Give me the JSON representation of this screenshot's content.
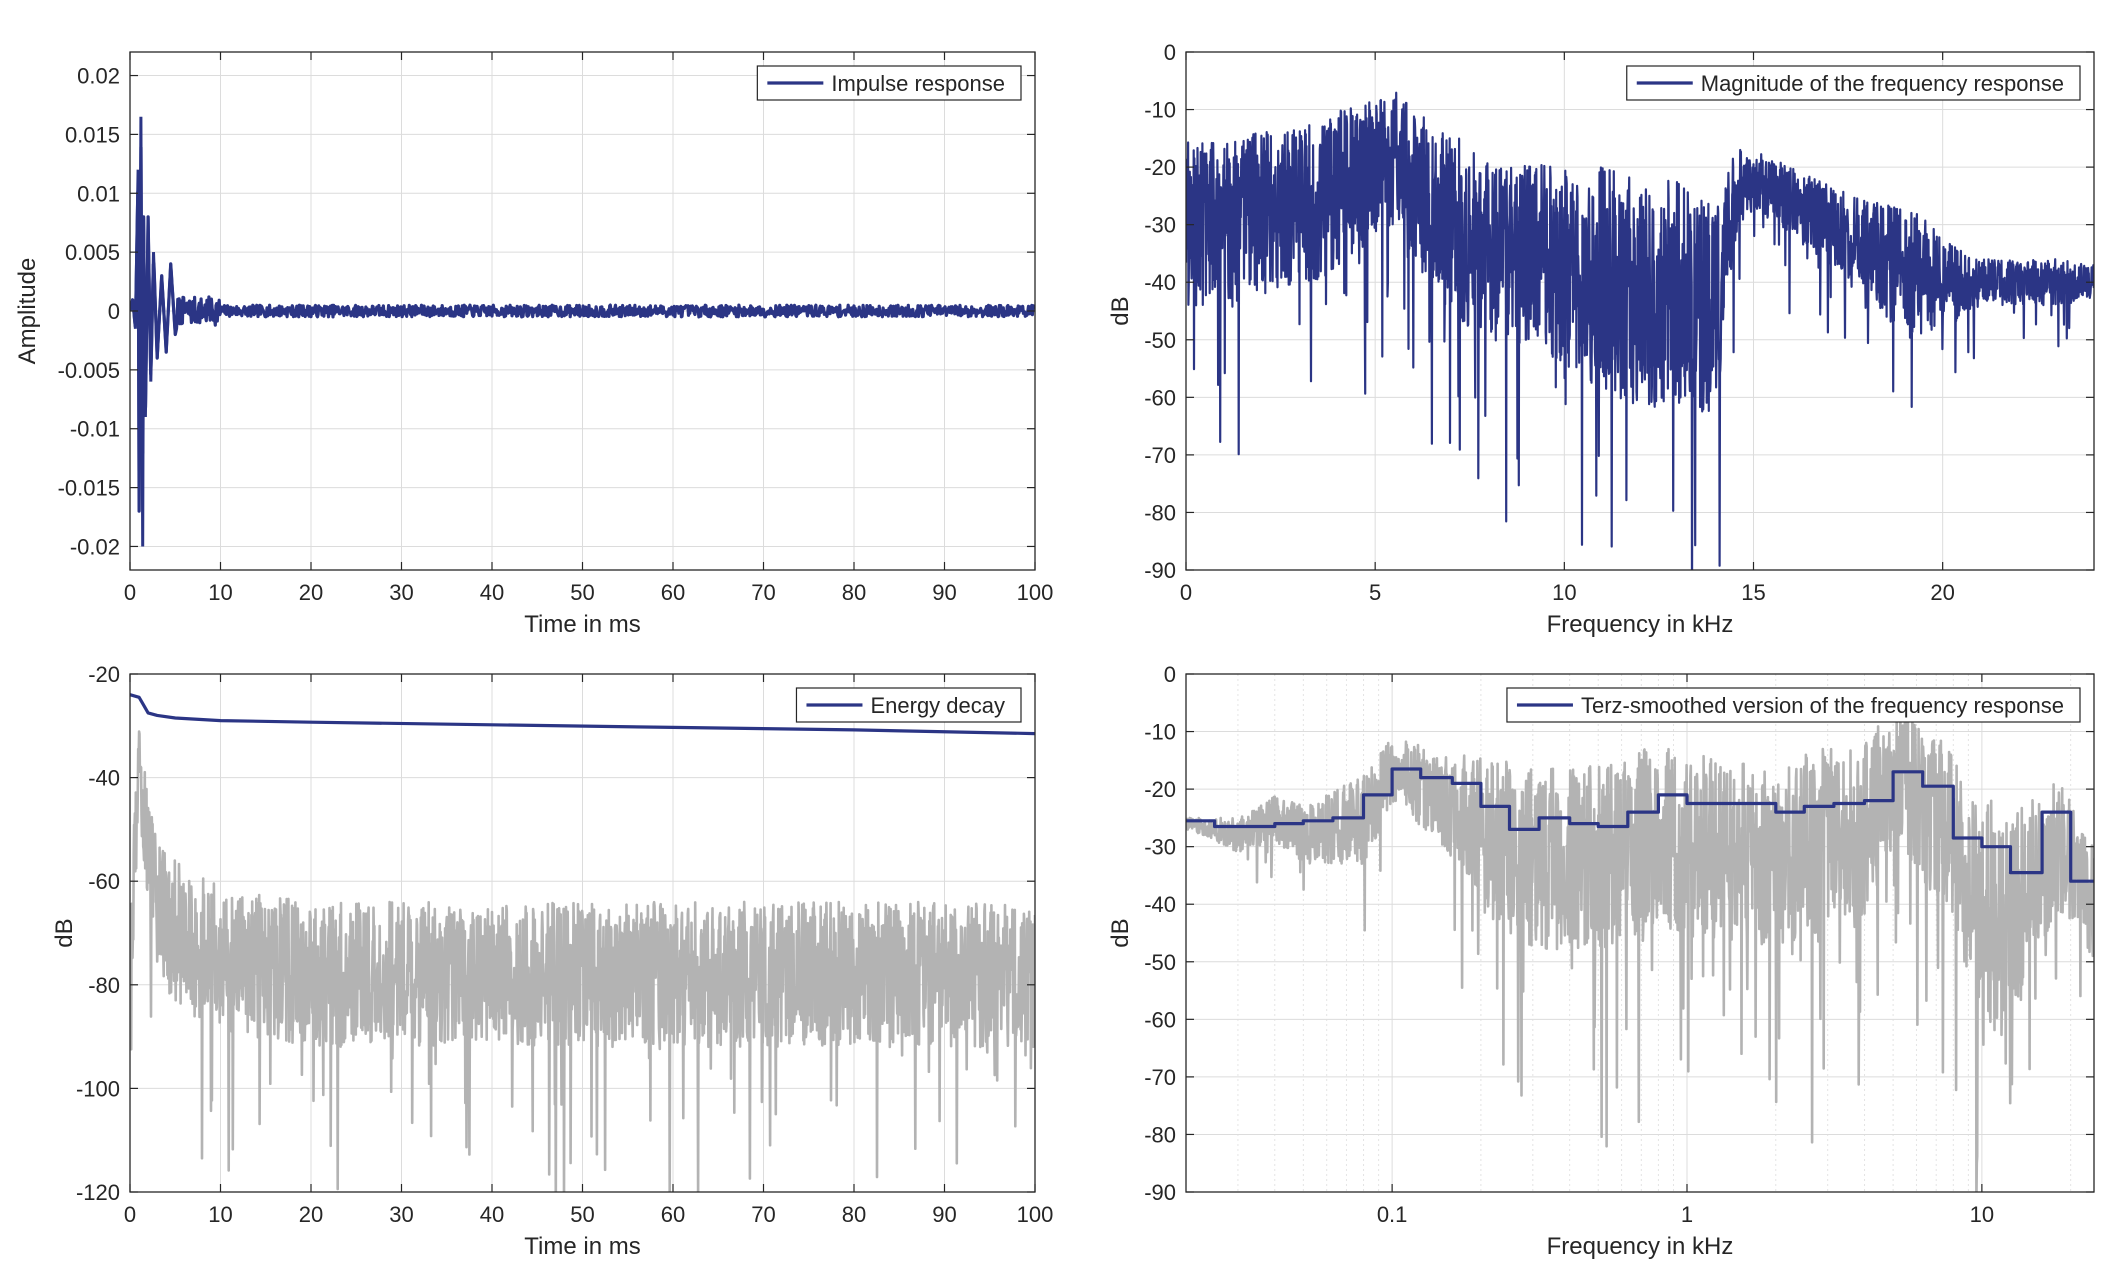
{
  "colors": {
    "primary": "#2b3585",
    "secondary": "#b3b3b3",
    "axis": "#262626",
    "grid": "#dcdcdc"
  },
  "chart_data": [
    {
      "id": "impulse",
      "type": "line",
      "xlabel": "Time in ms",
      "ylabel": "Amplitude",
      "xlim": [
        0,
        100
      ],
      "ylim": [
        -0.022,
        0.022
      ],
      "xticks": [
        0,
        10,
        20,
        30,
        40,
        50,
        60,
        70,
        80,
        90,
        100
      ],
      "xtick_labels": [
        "0",
        "10",
        "20",
        "30",
        "40",
        "50",
        "60",
        "70",
        "80",
        "90",
        "100"
      ],
      "yticks": [
        0.02,
        0.015,
        0.01,
        0.005,
        0,
        -0.005,
        -0.01,
        -0.015,
        -0.02
      ],
      "ytick_labels": [
        "0.02",
        "0.015",
        "0.01",
        "0.005",
        "0",
        "-0.005",
        "-0.01",
        "-0.015",
        "-0.02"
      ],
      "grid": true,
      "legend_position": "top-right",
      "series": [
        {
          "name": "Impulse response",
          "x": [
            0,
            0.3,
            0.6,
            0.9,
            1.0,
            1.2,
            1.4,
            1.5,
            1.7,
            2.0,
            2.3,
            2.6,
            3.0,
            3.5,
            4.0,
            4.5,
            5.0,
            6,
            7,
            8,
            10,
            12,
            15,
            20,
            30,
            40,
            50,
            60,
            70,
            80,
            90,
            100
          ],
          "y": [
            0,
            0.001,
            -0.0015,
            0.012,
            -0.017,
            0.0165,
            -0.02,
            0.008,
            -0.009,
            0.008,
            -0.006,
            0.005,
            -0.004,
            0.003,
            -0.0035,
            0.004,
            -0.002,
            0.0015,
            -0.0012,
            0.001,
            -0.0008,
            0.0007,
            -0.0005,
            0.0004,
            -0.0003,
            0.0003,
            -0.0003,
            0.0003,
            -0.0003,
            0.0003,
            -0.0003,
            0
          ]
        }
      ]
    },
    {
      "id": "magnitude",
      "type": "line",
      "xlabel": "Frequency in kHz",
      "ylabel": "dB",
      "xlim": [
        0,
        24
      ],
      "ylim": [
        -90,
        0
      ],
      "xticks": [
        0,
        5,
        10,
        15,
        20
      ],
      "xtick_labels": [
        "0",
        "5",
        "10",
        "15",
        "20"
      ],
      "yticks": [
        0,
        -10,
        -20,
        -30,
        -40,
        -50,
        -60,
        -70,
        -80,
        -90
      ],
      "ytick_labels": [
        "0",
        "-10",
        "-20",
        "-30",
        "-40",
        "-50",
        "-60",
        "-70",
        "-80",
        "-90"
      ],
      "grid": true,
      "legend_position": "top-right",
      "series": [
        {
          "name": "Magnitude of the frequency response",
          "x": [
            0,
            1,
            2,
            3,
            4,
            5,
            5.5,
            6,
            7,
            8,
            9,
            10,
            11,
            12,
            13,
            14,
            14.5,
            15,
            16,
            17,
            18,
            19,
            20,
            21,
            22,
            23,
            24
          ],
          "y": [
            -30,
            -30,
            -28,
            -27,
            -24,
            -20,
            -18,
            -24,
            -30,
            -34,
            -35,
            -37,
            -40,
            -42,
            -42,
            -45,
            -25,
            -22,
            -26,
            -30,
            -34,
            -38,
            -40,
            -40,
            -40,
            -40,
            -40
          ],
          "spread": [
            15,
            15,
            14,
            14,
            14,
            12,
            12,
            14,
            16,
            16,
            16,
            17,
            20,
            20,
            20,
            18,
            8,
            5,
            6,
            7,
            8,
            12,
            8,
            4,
            4,
            4,
            3
          ]
        }
      ]
    },
    {
      "id": "decay",
      "type": "line",
      "xlabel": "Time in ms",
      "ylabel": "dB",
      "xlim": [
        0,
        100
      ],
      "ylim": [
        -120,
        -20
      ],
      "xticks": [
        0,
        10,
        20,
        30,
        40,
        50,
        60,
        70,
        80,
        90,
        100
      ],
      "xtick_labels": [
        "0",
        "10",
        "20",
        "30",
        "40",
        "50",
        "60",
        "70",
        "80",
        "90",
        "100"
      ],
      "yticks": [
        -20,
        -40,
        -60,
        -80,
        -100,
        -120
      ],
      "ytick_labels": [
        "-20",
        "-40",
        "-60",
        "-80",
        "-100",
        "-120"
      ],
      "grid": true,
      "legend_position": "top-right",
      "series": [
        {
          "name": "Energy decay",
          "x": [
            0,
            1,
            1.5,
            2,
            3,
            5,
            10,
            20,
            40,
            60,
            80,
            100
          ],
          "y": [
            -24,
            -24.5,
            -26,
            -27.5,
            -28,
            -28.5,
            -29,
            -29.3,
            -29.8,
            -30.3,
            -30.8,
            -31.5
          ]
        },
        {
          "name": "",
          "x": [
            0,
            1,
            2,
            3,
            5,
            10,
            20,
            40,
            60,
            80,
            100
          ],
          "y": [
            -75,
            -40,
            -55,
            -65,
            -70,
            -75,
            -78,
            -78,
            -78,
            -78,
            -78
          ],
          "spread": [
            10,
            10,
            12,
            12,
            14,
            14,
            14,
            14,
            14,
            14,
            14
          ]
        }
      ]
    },
    {
      "id": "terz",
      "type": "line",
      "xscale": "log",
      "xlabel": "Frequency in kHz",
      "ylabel": "dB",
      "xlim": [
        0.02,
        24
      ],
      "ylim": [
        -90,
        0
      ],
      "xticks": [
        0.1,
        1,
        10
      ],
      "xtick_labels": [
        "0.1",
        "1",
        "10"
      ],
      "yticks": [
        0,
        -10,
        -20,
        -30,
        -40,
        -50,
        -60,
        -70,
        -80,
        -90
      ],
      "ytick_labels": [
        "0",
        "-10",
        "-20",
        "-30",
        "-40",
        "-50",
        "-60",
        "-70",
        "-80",
        "-90"
      ],
      "grid": true,
      "legend_position": "top-right",
      "series": [
        {
          "name": "Terz-smoothed version of the frequency response",
          "step": true,
          "x": [
            0.02,
            0.025,
            0.0315,
            0.04,
            0.05,
            0.063,
            0.08,
            0.1,
            0.125,
            0.16,
            0.2,
            0.25,
            0.315,
            0.4,
            0.5,
            0.63,
            0.8,
            1,
            1.25,
            1.6,
            2,
            2.5,
            3.15,
            4,
            5,
            6.3,
            8,
            10,
            12.5,
            16,
            20,
            24
          ],
          "y": [
            -25.5,
            -26.5,
            -26.5,
            -26,
            -25.5,
            -25,
            -21,
            -16.5,
            -18,
            -19,
            -23,
            -27,
            -25,
            -26,
            -26.5,
            -24,
            -21,
            -22.5,
            -22.5,
            -22.5,
            -24,
            -23,
            -22.5,
            -22,
            -17,
            -19.5,
            -28.5,
            -30,
            -34.5,
            -24,
            -36,
            -36
          ]
        },
        {
          "name": "",
          "x": [
            0.02,
            0.025,
            0.03,
            0.04,
            0.05,
            0.06,
            0.08,
            0.1,
            0.15,
            0.2,
            0.3,
            0.5,
            0.8,
            1,
            2,
            3,
            4,
            5,
            6,
            8,
            10,
            12,
            15,
            18,
            24
          ],
          "y": [
            -26,
            -27,
            -28,
            -25,
            -28,
            -27,
            -25,
            -17,
            -22,
            -28,
            -32,
            -32,
            -28,
            -30,
            -32,
            -28,
            -28,
            -16,
            -20,
            -30,
            -40,
            -45,
            -35,
            -30,
            -40
          ],
          "spread": [
            1,
            2,
            3,
            4,
            5,
            6,
            8,
            6,
            8,
            14,
            16,
            16,
            16,
            16,
            16,
            16,
            16,
            12,
            14,
            16,
            20,
            20,
            14,
            12,
            10
          ]
        }
      ]
    }
  ]
}
